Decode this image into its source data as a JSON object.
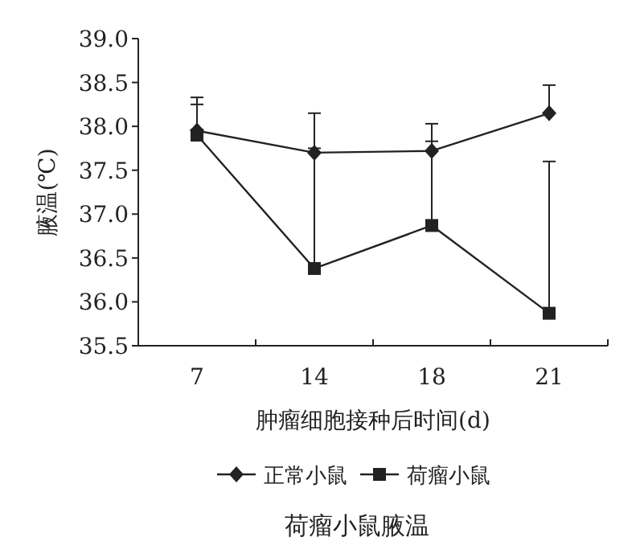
{
  "chart_data": {
    "type": "line",
    "title": "荷瘤小鼠腋温",
    "xlabel": "肿瘤细胞接种后时间(d)",
    "ylabel": "腋温(℃)",
    "categories": [
      "7",
      "14",
      "18",
      "21"
    ],
    "ylim": [
      35.5,
      39.0
    ],
    "yticks": [
      {
        "value": 35.5,
        "label": "35.5"
      },
      {
        "value": 36.0,
        "label": "36.0"
      },
      {
        "value": 36.5,
        "label": "36.5"
      },
      {
        "value": 37.0,
        "label": "37.0"
      },
      {
        "value": 37.5,
        "label": "37.5"
      },
      {
        "value": 38.0,
        "label": "38.0"
      },
      {
        "value": 38.5,
        "label": "38.5"
      },
      {
        "value": 39.0,
        "label": "39.0"
      }
    ],
    "grid": false,
    "legend": "bottom",
    "series": [
      {
        "name": "正常小鼠",
        "color": "#222222",
        "marker": "diamond",
        "values": [
          37.95,
          37.7,
          37.72,
          38.15
        ],
        "errors": [
          [
            37.95,
            38.33
          ],
          [
            37.7,
            38.15
          ],
          [
            37.72,
            38.03
          ],
          [
            38.15,
            38.47
          ]
        ]
      },
      {
        "name": "荷瘤小鼠",
        "color": "#222222",
        "marker": "square",
        "values": [
          37.9,
          36.38,
          36.87,
          35.87
        ],
        "errors": [
          [
            37.9,
            38.25
          ],
          [
            36.38,
            37.75
          ],
          [
            36.87,
            37.83
          ],
          [
            35.87,
            37.6
          ]
        ]
      }
    ]
  }
}
